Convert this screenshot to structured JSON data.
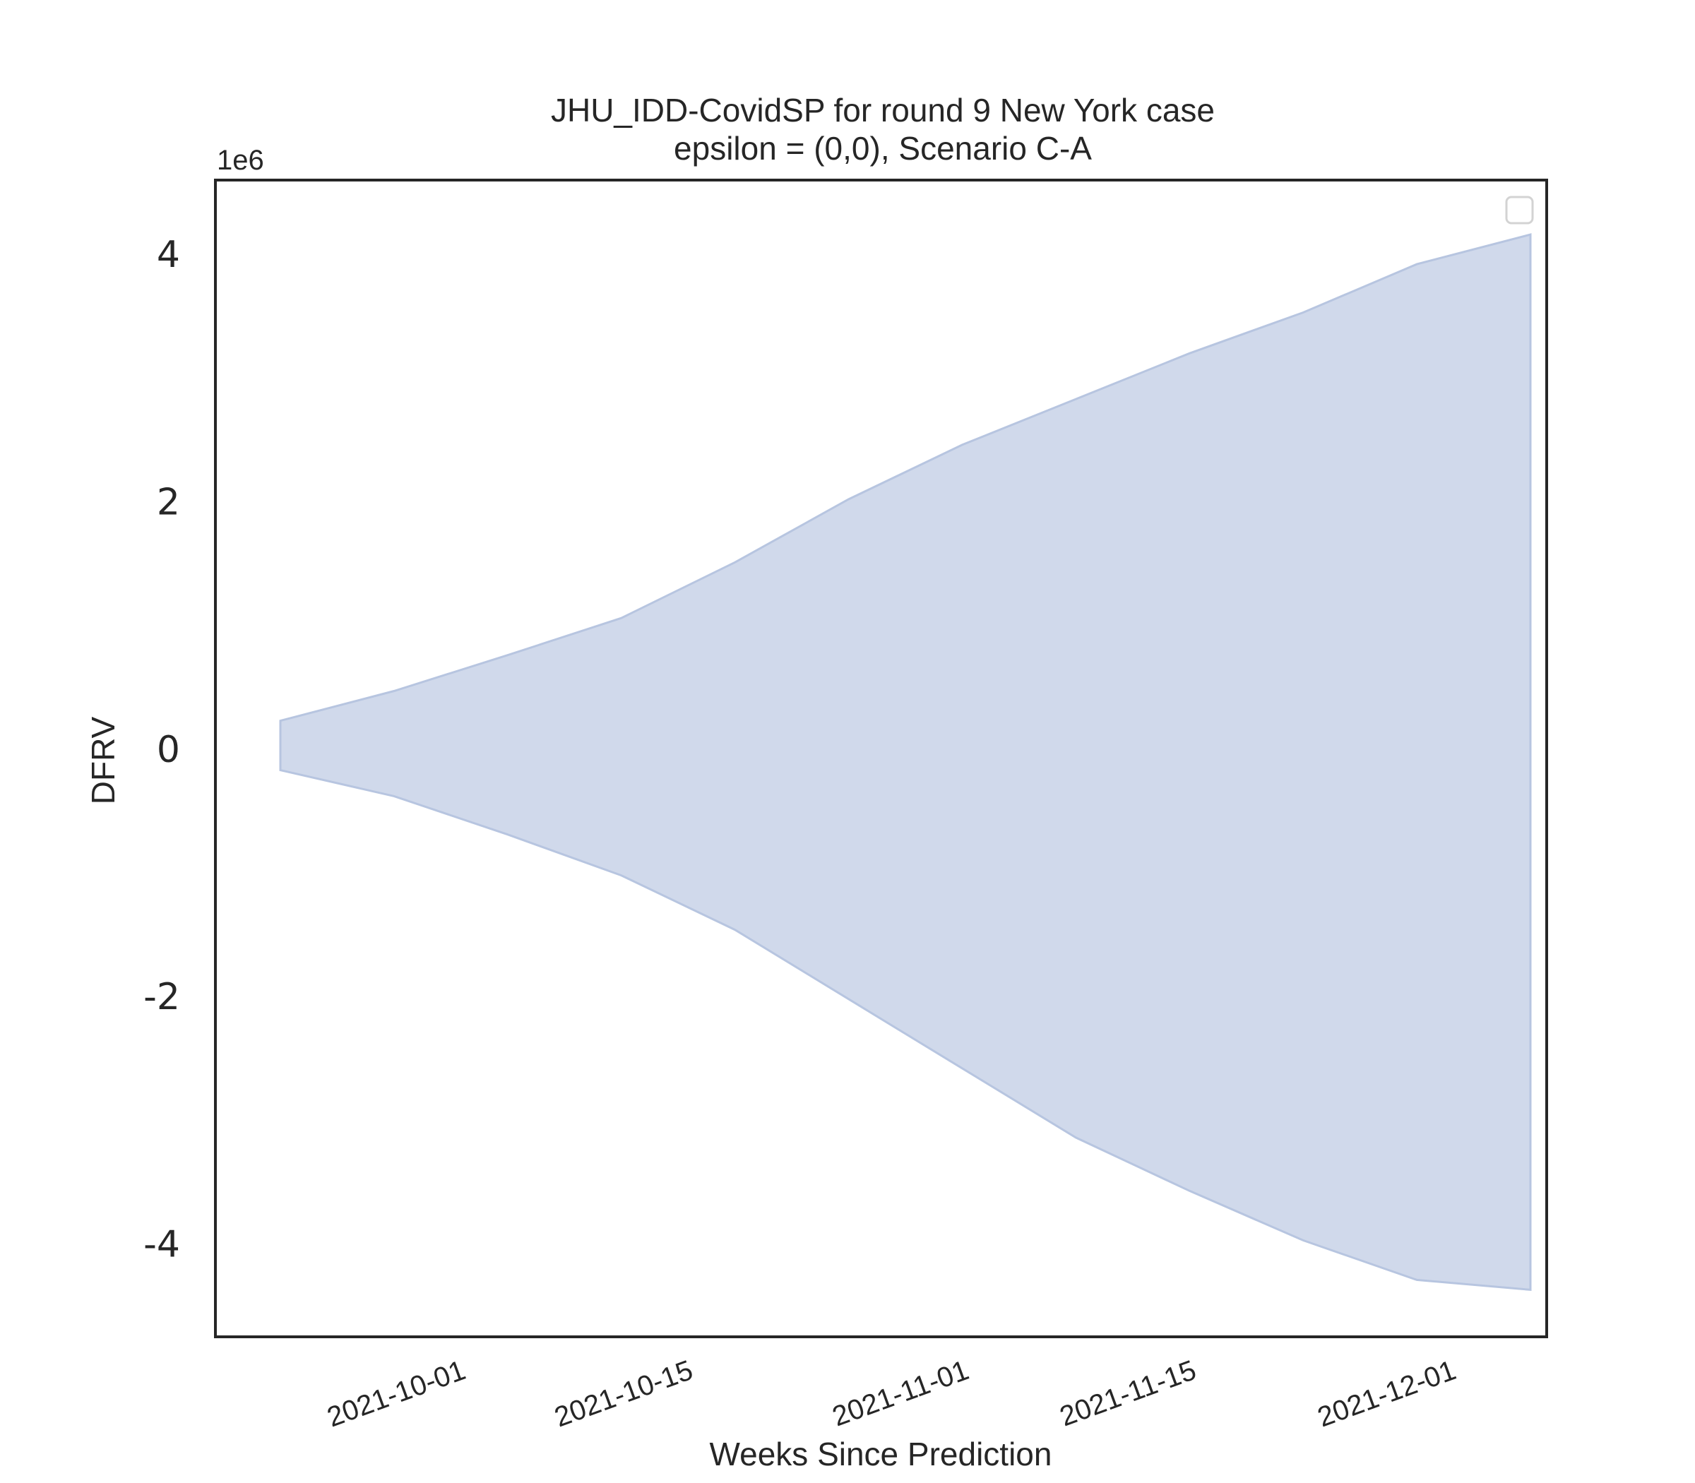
{
  "chart_data": {
    "type": "area",
    "title": "JHU_IDD-CovidSP for round 9 New York case",
    "subtitle": "epsilon = (0,0), Scenario C-A",
    "xlabel": "Weeks Since Prediction",
    "ylabel": "DFRV",
    "y_offset_label": "1e6",
    "x_ticks": [
      "2021-10-01",
      "2021-10-15",
      "2021-11-01",
      "2021-11-15",
      "2021-12-01"
    ],
    "y_ticks": [
      {
        "value": 4,
        "label": "4"
      },
      {
        "value": 2,
        "label": "2"
      },
      {
        "value": 0,
        "label": "0"
      },
      {
        "value": -2,
        "label": "-2"
      },
      {
        "value": -4,
        "label": "-4"
      }
    ],
    "xlim": [
      "2021-09-16",
      "2021-12-07"
    ],
    "ylim": [
      -4.75,
      4.6
    ],
    "y_scale_factor": 1000000,
    "grid": false,
    "legend": {
      "position": "top-right",
      "entries": []
    },
    "fill_color": "#b7c5e0",
    "band": {
      "x": [
        "2021-09-20",
        "2021-09-27",
        "2021-10-04",
        "2021-10-11",
        "2021-10-18",
        "2021-10-25",
        "2021-11-01",
        "2021-11-08",
        "2021-11-15",
        "2021-11-22",
        "2021-11-29",
        "2021-12-06"
      ],
      "upper": [
        0.23,
        0.47,
        0.76,
        1.06,
        1.51,
        2.02,
        2.46,
        2.83,
        3.2,
        3.53,
        3.92,
        4.16
      ],
      "lower": [
        -0.17,
        -0.38,
        -0.69,
        -1.02,
        -1.46,
        -2.02,
        -2.58,
        -3.14,
        -3.57,
        -3.97,
        -4.29,
        -4.37
      ]
    }
  }
}
